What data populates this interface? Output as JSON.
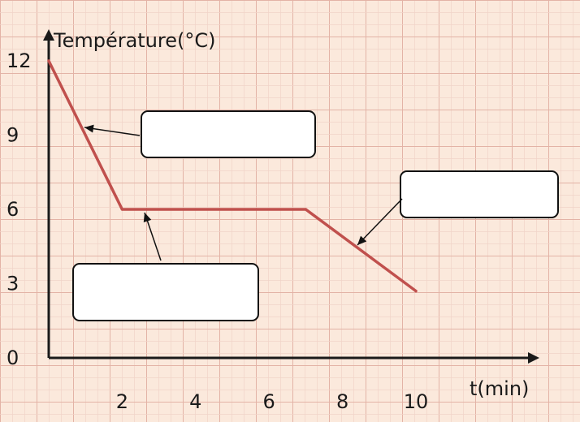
{
  "chart_data": {
    "type": "line",
    "ylabel": "Température(°C)",
    "xlabel": "t(min)",
    "x_ticks": [
      "2",
      "4",
      "6",
      "8",
      "10"
    ],
    "y_ticks": [
      "0",
      "3",
      "6",
      "9",
      "12"
    ],
    "xlim": [
      0,
      13
    ],
    "ylim": [
      0,
      12.6
    ],
    "grid": true,
    "series": [
      {
        "x": [
          0,
          2,
          7,
          10
        ],
        "y": [
          12,
          6,
          6,
          2.7
        ],
        "color": "#c0504d"
      }
    ],
    "annotation_boxes": [
      {
        "name": "cooling-liquid-phase",
        "text": ""
      },
      {
        "name": "solidification-plateau",
        "text": ""
      },
      {
        "name": "cooling-solid-phase",
        "text": ""
      }
    ]
  },
  "colors": {
    "background": "#fbe9dc",
    "grid_major": "#e3b3a6",
    "grid_minor": "#f1d3c8",
    "axis": "#1a1a1a",
    "curve": "#c0504d"
  }
}
